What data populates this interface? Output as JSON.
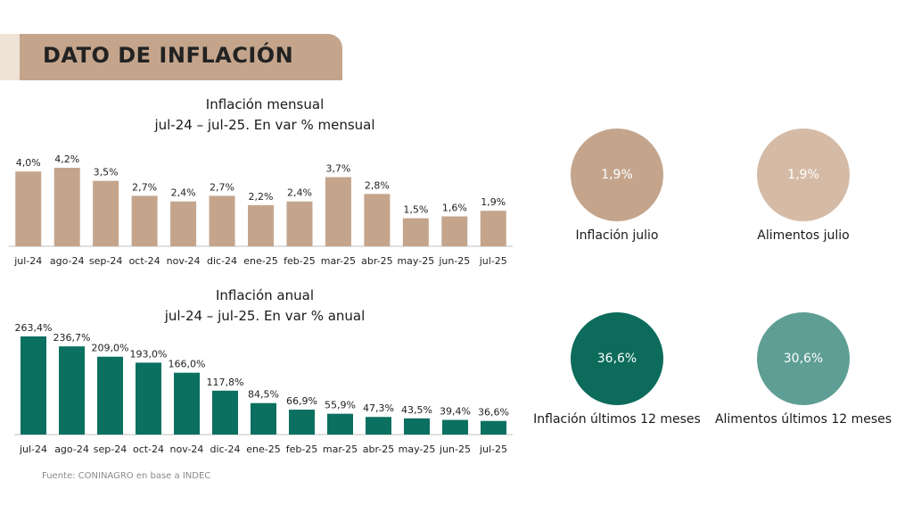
{
  "header": {
    "title": "DATO DE INFLACIÓN"
  },
  "chart_data": [
    {
      "type": "bar",
      "title": "Inflación mensual",
      "subtitle": "jul-24 – jul-25. En var % mensual",
      "categories": [
        "jul-24",
        "ago-24",
        "sep-24",
        "oct-24",
        "nov-24",
        "dic-24",
        "ene-25",
        "feb-25",
        "mar-25",
        "abr-25",
        "may-25",
        "jun-25",
        "jul-25"
      ],
      "values": [
        4.0,
        4.2,
        3.5,
        2.7,
        2.4,
        2.7,
        2.2,
        2.4,
        3.7,
        2.8,
        1.5,
        1.6,
        1.9
      ],
      "labels": [
        "4,0%",
        "4,2%",
        "3,5%",
        "2,7%",
        "2,4%",
        "2,7%",
        "2,2%",
        "2,4%",
        "3,7%",
        "2,8%",
        "1,5%",
        "1,6%",
        "1,9%"
      ],
      "color": "#c4a58c",
      "ylim": [
        0,
        4.2
      ]
    },
    {
      "type": "bar",
      "title": "Inflación anual",
      "subtitle": "jul-24 – jul-25. En var % anual",
      "categories": [
        "jul-24",
        "ago-24",
        "sep-24",
        "oct-24",
        "nov-24",
        "dic-24",
        "ene-25",
        "feb-25",
        "mar-25",
        "abr-25",
        "may-25",
        "jun-25",
        "jul-25"
      ],
      "values": [
        263.4,
        236.7,
        209.0,
        193.0,
        166.0,
        117.8,
        84.5,
        66.9,
        55.9,
        47.3,
        43.5,
        39.4,
        36.6
      ],
      "labels": [
        "263,4%",
        "236,7%",
        "209,0%",
        "193,0%",
        "166,0%",
        "117,8%",
        "84,5%",
        "66,9%",
        "55,9%",
        "47,3%",
        "43,5%",
        "39,4%",
        "36,6%"
      ],
      "color": "#0c7060",
      "ylim": [
        0,
        263.4
      ]
    }
  ],
  "kpis": [
    {
      "value": "1,9%",
      "label": "Inflación julio",
      "color": "#c4a58c"
    },
    {
      "value": "1,9%",
      "label": "Alimentos julio",
      "color": "#d5bba6"
    },
    {
      "value": "36,6%",
      "label": "Inflación últimos 12 meses",
      "color": "#0c6b5b"
    },
    {
      "value": "30,6%",
      "label": "Alimentos últimos 12 meses",
      "color": "#5e9e94"
    }
  ],
  "footer": {
    "source": "Fuente: CONINAGRO en base a INDEC"
  }
}
